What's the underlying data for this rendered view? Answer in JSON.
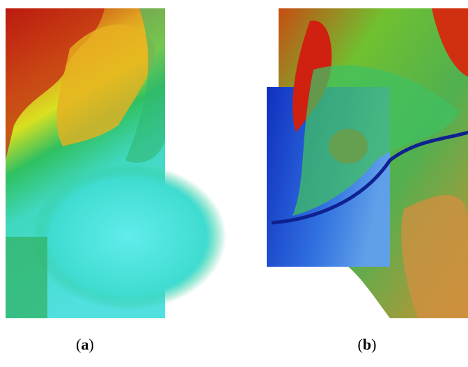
{
  "panels": [
    {
      "caption": [
        "(",
        "a",
        ")"
      ]
    },
    {
      "caption": [
        "(",
        "b",
        ")"
      ]
    }
  ]
}
